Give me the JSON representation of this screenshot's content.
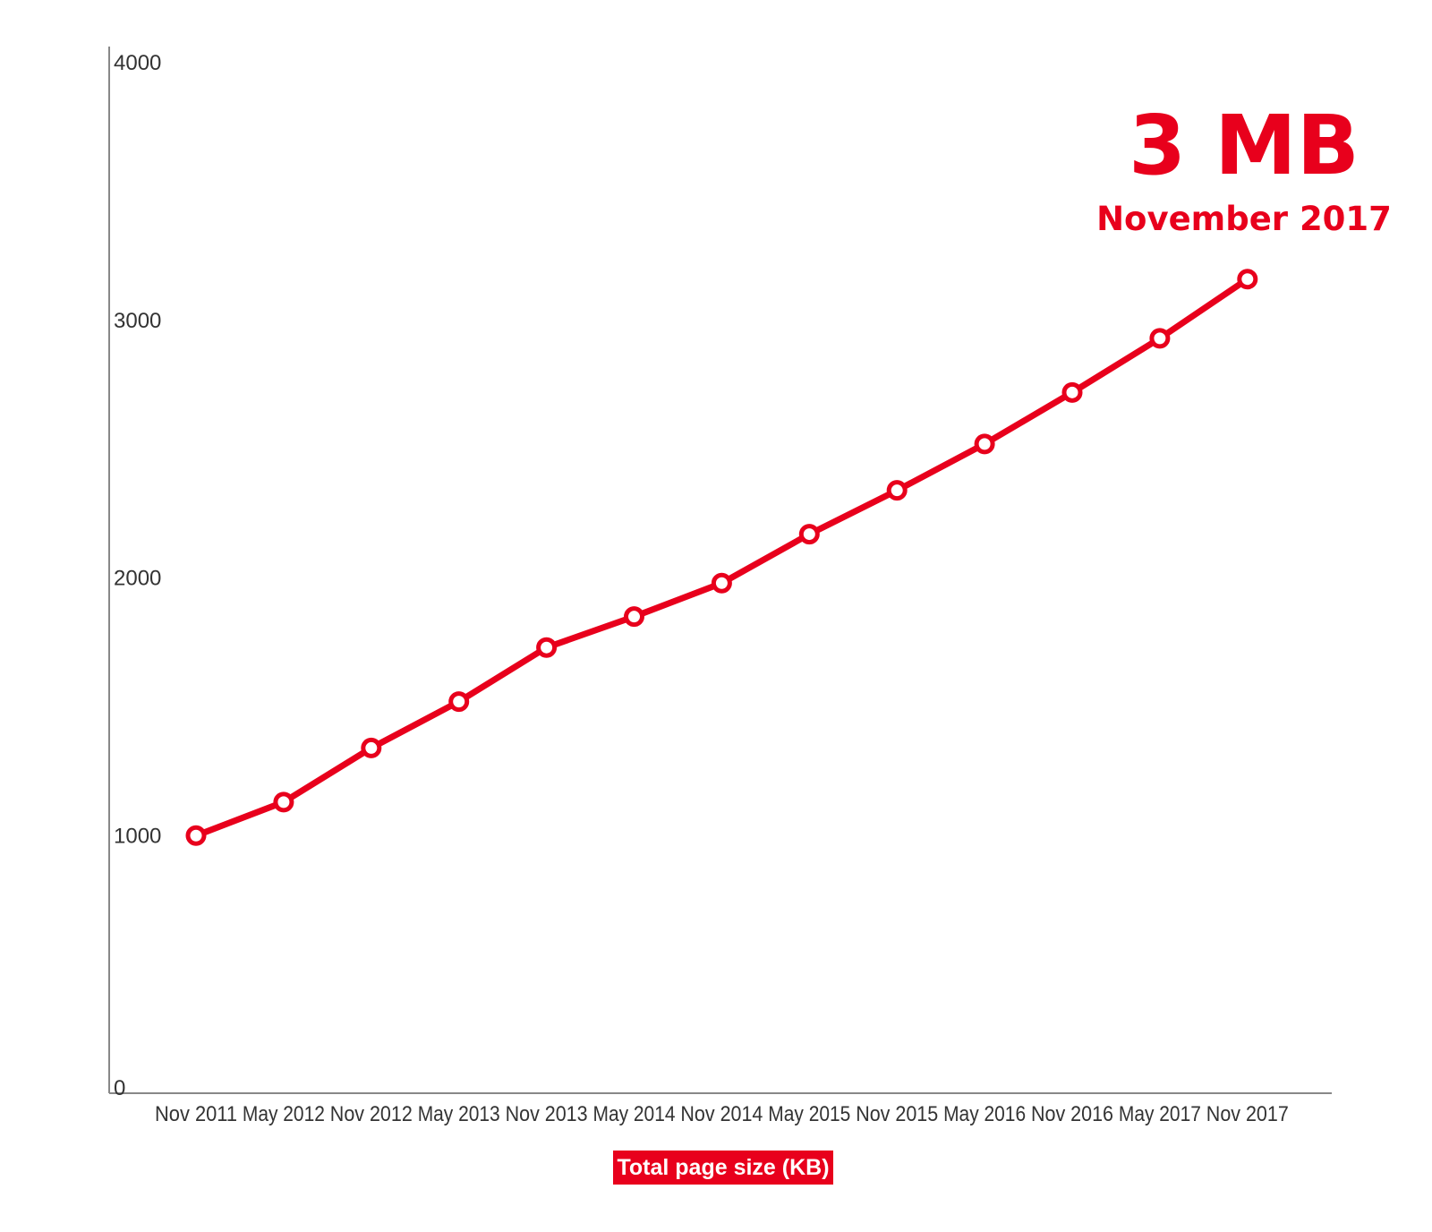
{
  "chart_data": {
    "type": "line",
    "categories": [
      "Nov 2011",
      "May 2012",
      "Nov 2012",
      "May 2013",
      "Nov 2013",
      "May 2014",
      "Nov 2014",
      "May 2015",
      "Nov 2015",
      "May 2016",
      "Nov 2016",
      "May 2017",
      "Nov 2017"
    ],
    "series": [
      {
        "name": "Total page size (KB)",
        "values": [
          1000,
          1130,
          1340,
          1520,
          1730,
          1850,
          1980,
          2170,
          2340,
          2520,
          2720,
          2930,
          3160
        ],
        "color": "#e8001c"
      }
    ],
    "yticks": [
      0,
      1000,
      2000,
      3000,
      4000
    ],
    "ylim": [
      0,
      4000
    ],
    "grid": false,
    "legend": "bottom-center",
    "annotation": {
      "value": "3 MB",
      "label": "November 2017"
    }
  }
}
